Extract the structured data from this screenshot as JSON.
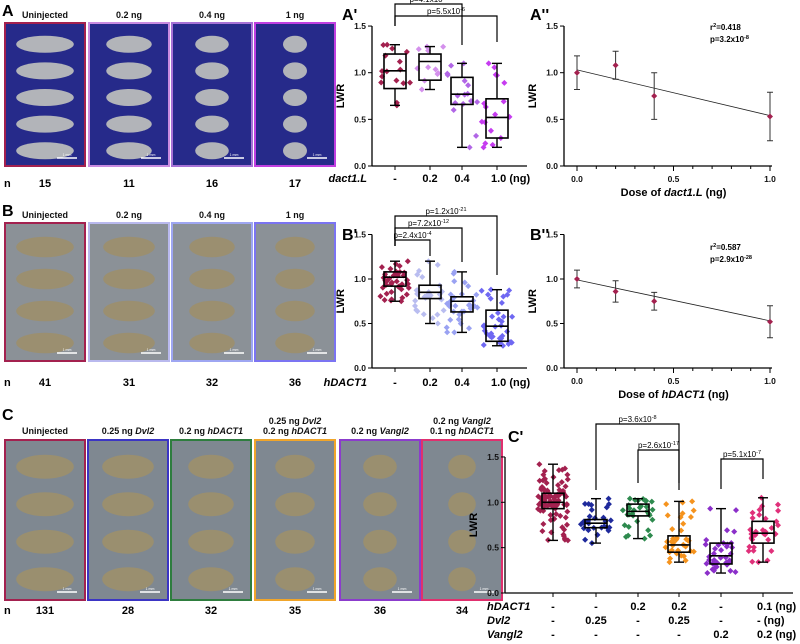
{
  "panels": {
    "A": "A",
    "A1": "A'",
    "A2": "A''",
    "B": "B",
    "B1": "B'",
    "B2": "B''",
    "C": "C",
    "C1": "C'"
  },
  "n_label": "n",
  "photos_A": {
    "labels": [
      "Uninjected",
      "0.2 ng",
      "0.4 ng",
      "1 ng"
    ],
    "n": [
      "15",
      "11",
      "16",
      "17"
    ],
    "border_colors": [
      "#a3214f",
      "#c98be0",
      "#a772d6",
      "#c03fe0"
    ],
    "scale_bar": "1 mm"
  },
  "photos_B": {
    "labels": [
      "Uninjected",
      "0.2 ng",
      "0.4 ng",
      "1 ng"
    ],
    "n": [
      "41",
      "31",
      "32",
      "36"
    ],
    "border_colors": [
      "#a3214f",
      "#b9b9ee",
      "#9ea6f2",
      "#7b74f2"
    ],
    "scale_bar": "1 mm"
  },
  "photos_C": {
    "labels": [
      {
        "l1": "Uninjected"
      },
      {
        "l1a": "0.25 ng ",
        "l1b": "Dvl2"
      },
      {
        "l1a": "0.2 ng ",
        "l1b": "hDACT1"
      },
      {
        "l0a": "0.25 ng ",
        "l0b": "Dvl2",
        "l1a": "0.2 ng ",
        "l1b": "hDACT1"
      },
      {
        "l1a": "0.2 ng ",
        "l1b": "Vangl2"
      },
      {
        "l0a": "0.2 ng ",
        "l0b": "Vangl2",
        "l1a": "0.1 ng ",
        "l1b": "hDACT1"
      }
    ],
    "n": [
      "131",
      "28",
      "32",
      "35",
      "36",
      "34"
    ],
    "border_colors": [
      "#a3214f",
      "#3b35c4",
      "#2e7d3e",
      "#f0a52a",
      "#8b3ccc",
      "#e0306e"
    ],
    "scale_bar": "1 mm"
  },
  "chart_data": [
    {
      "id": "A'",
      "type": "box",
      "ylabel": "LWR",
      "ylim": [
        0,
        1.5
      ],
      "yticks": [
        "0.0",
        "0.5",
        "1.0",
        "1.5"
      ],
      "xlabel_gene": "dact1.L",
      "categories": [
        "-",
        "0.2",
        "0.4",
        "1.0 (ng)"
      ],
      "colors": [
        "#a3214f",
        "#d490ec",
        "#b166e6",
        "#c63cf0"
      ],
      "boxes": [
        {
          "min": 0.65,
          "q1": 0.83,
          "median": 1.02,
          "q3": 1.2,
          "max": 1.3
        },
        {
          "min": 0.82,
          "q1": 0.92,
          "median": 1.12,
          "q3": 1.2,
          "max": 1.28
        },
        {
          "min": 0.2,
          "q1": 0.66,
          "median": 0.77,
          "q3": 0.95,
          "max": 1.1
        },
        {
          "min": 0.2,
          "q1": 0.3,
          "median": 0.52,
          "q3": 0.72,
          "max": 1.1
        }
      ],
      "comparisons": [
        {
          "from": 0,
          "to": 2,
          "p_base": "p=4.1x10",
          "p_exp": "-3"
        },
        {
          "from": 0,
          "to": 3,
          "p_base": "p=5.5x10",
          "p_exp": "-6"
        }
      ]
    },
    {
      "id": "A''",
      "type": "line",
      "ylabel": "LWR",
      "ylim": [
        0,
        1.5
      ],
      "yticks": [
        "0.0",
        "0.5",
        "1.0",
        "1.5"
      ],
      "xlabel_pre": "Dose of ",
      "xlabel_gene": "dact1.L",
      "xlabel_post": " (ng)",
      "xlim": [
        0,
        1
      ],
      "xticks": [
        "0.0",
        "0.5",
        "1.0"
      ],
      "x": [
        0,
        0.2,
        0.4,
        1.0
      ],
      "y": [
        1.0,
        1.08,
        0.75,
        0.53
      ],
      "err": [
        0.18,
        0.15,
        0.25,
        0.26
      ],
      "fit": [
        [
          0,
          1.03
        ],
        [
          1.0,
          0.54
        ]
      ],
      "r2_base": "r",
      "r2_sup": "2",
      "r2_val": "=0.418",
      "p_base": "p=3.2x10",
      "p_exp": "-8",
      "color": "#a3214f"
    },
    {
      "id": "B'",
      "type": "box",
      "ylabel": "LWR",
      "ylim": [
        0,
        1.5
      ],
      "yticks": [
        "0.0",
        "0.5",
        "1.0",
        "1.5"
      ],
      "xlabel_gene": "hDACT1",
      "categories": [
        "-",
        "0.2",
        "0.4",
        "1.0 (ng)"
      ],
      "colors": [
        "#a3214f",
        "#b9bdf0",
        "#9aa2f2",
        "#6f68f2"
      ],
      "boxes": [
        {
          "min": 0.75,
          "q1": 0.92,
          "median": 1.02,
          "q3": 1.08,
          "max": 1.2
        },
        {
          "min": 0.5,
          "q1": 0.78,
          "median": 0.85,
          "q3": 0.93,
          "max": 1.2
        },
        {
          "min": 0.4,
          "q1": 0.63,
          "median": 0.75,
          "q3": 0.8,
          "max": 1.08
        },
        {
          "min": 0.25,
          "q1": 0.3,
          "median": 0.47,
          "q3": 0.65,
          "max": 0.88
        }
      ],
      "comparisons": [
        {
          "from": 0,
          "to": 1,
          "p_base": "p=2.4x10",
          "p_exp": "-4"
        },
        {
          "from": 0,
          "to": 2,
          "p_base": "p=7.2x10",
          "p_exp": "-12"
        },
        {
          "from": 0,
          "to": 3,
          "p_base": "p=1.2x10",
          "p_exp": "-21"
        }
      ]
    },
    {
      "id": "B''",
      "type": "line",
      "ylabel": "LWR",
      "ylim": [
        0,
        1.5
      ],
      "yticks": [
        "0.0",
        "0.5",
        "1.0",
        "1.5"
      ],
      "xlabel_pre": "Dose of ",
      "xlabel_gene": "hDACT1",
      "xlabel_post": " (ng)",
      "xlim": [
        0,
        1
      ],
      "xticks": [
        "0.0",
        "0.5",
        "1.0"
      ],
      "x": [
        0,
        0.2,
        0.4,
        1.0
      ],
      "y": [
        1.0,
        0.86,
        0.75,
        0.52
      ],
      "err": [
        0.1,
        0.12,
        0.1,
        0.18
      ],
      "fit": [
        [
          0,
          0.99
        ],
        [
          1.0,
          0.53
        ]
      ],
      "r2_base": "r",
      "r2_sup": "2",
      "r2_val": "=0.587",
      "p_base": "p=2.9x10",
      "p_exp": "-28",
      "color": "#a3214f"
    },
    {
      "id": "C'",
      "type": "box",
      "ylabel": "LWR",
      "ylim": [
        0,
        1.5
      ],
      "yticks": [
        "0.0",
        "0.5",
        "1.0",
        "1.5"
      ],
      "rows": [
        {
          "gene": "hDACT1",
          "values": [
            "-",
            "-",
            "0.2",
            "0.2",
            "-",
            "0.1 (ng)"
          ]
        },
        {
          "gene": "Dvl2",
          "values": [
            "-",
            "0.25",
            "-",
            "0.25",
            "-",
            "-   (ng)"
          ]
        },
        {
          "gene": "Vangl2",
          "values": [
            "-",
            "-",
            "-",
            "-",
            "0.2",
            "0.2 (ng)"
          ]
        }
      ],
      "colors": [
        "#a3214f",
        "#1f2a9c",
        "#2e8a4e",
        "#f5931e",
        "#8b2fc9",
        "#e0307a"
      ],
      "boxes": [
        {
          "min": 0.58,
          "q1": 0.93,
          "median": 1.0,
          "q3": 1.1,
          "max": 1.42
        },
        {
          "min": 0.55,
          "q1": 0.72,
          "median": 0.77,
          "q3": 0.81,
          "max": 1.04
        },
        {
          "min": 0.6,
          "q1": 0.85,
          "median": 0.9,
          "q3": 0.98,
          "max": 1.04
        },
        {
          "min": 0.34,
          "q1": 0.45,
          "median": 0.53,
          "q3": 0.63,
          "max": 1.01
        },
        {
          "min": 0.22,
          "q1": 0.32,
          "median": 0.41,
          "q3": 0.55,
          "max": 0.93
        },
        {
          "min": 0.34,
          "q1": 0.55,
          "median": 0.66,
          "q3": 0.79,
          "max": 1.05
        }
      ],
      "comparisons": [
        {
          "from": 1,
          "to": 3,
          "p_base": "p=3.6x10",
          "p_exp": "-8"
        },
        {
          "from": 2,
          "to": 3,
          "p_base": "p=2.6x10",
          "p_exp": "-17"
        },
        {
          "from": 4,
          "to": 5,
          "p_base": "p=5.1x10",
          "p_exp": "-7"
        }
      ]
    }
  ]
}
